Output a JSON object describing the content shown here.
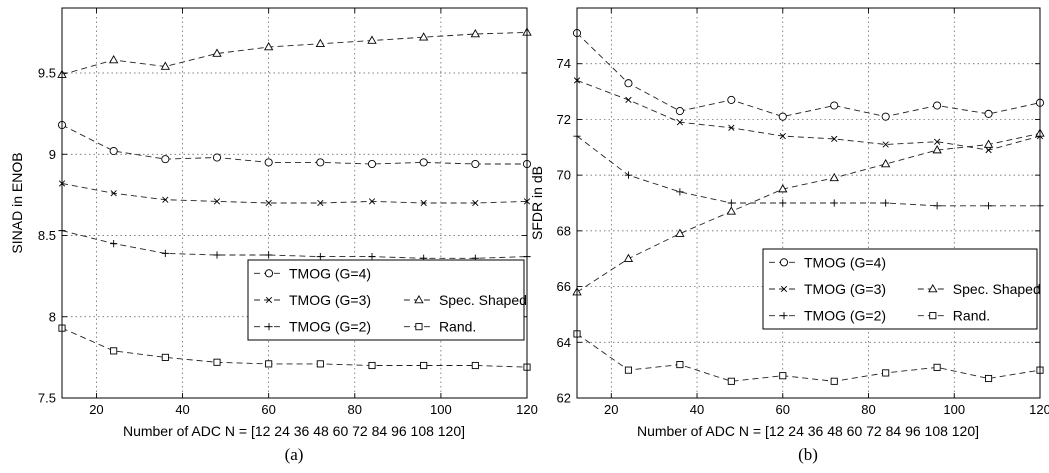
{
  "chart_data": [
    {
      "type": "line",
      "panel": "(a)",
      "xlabel": "Number of ADC N = [12 24 36 48 60 72 84 96 108 120]",
      "ylabel": "SINAD in ENOB",
      "xlim": [
        12,
        120
      ],
      "ylim": [
        7.5,
        9.9
      ],
      "xticks": [
        20,
        40,
        60,
        80,
        100,
        120
      ],
      "yticks": [
        7.5,
        8,
        8.5,
        9,
        9.5
      ],
      "ytick_labels": [
        "7.5",
        "8",
        "8.5",
        "9",
        "9.5"
      ],
      "grid": true,
      "legend_position": "lower-right",
      "x": [
        12,
        24,
        36,
        48,
        60,
        72,
        84,
        96,
        108,
        120
      ],
      "series": [
        {
          "name": "TMOG (G=4)",
          "marker": "circle",
          "values": [
            9.18,
            9.02,
            8.97,
            8.98,
            8.95,
            8.95,
            8.94,
            8.95,
            8.94,
            8.94
          ]
        },
        {
          "name": "TMOG (G=3)",
          "marker": "x",
          "values": [
            8.82,
            8.76,
            8.72,
            8.71,
            8.7,
            8.7,
            8.71,
            8.7,
            8.7,
            8.71
          ]
        },
        {
          "name": "TMOG (G=2)",
          "marker": "plus",
          "values": [
            8.53,
            8.45,
            8.39,
            8.38,
            8.38,
            8.37,
            8.37,
            8.36,
            8.36,
            8.37
          ]
        },
        {
          "name": "Spec. Shaped",
          "marker": "triangle",
          "values": [
            9.49,
            9.58,
            9.54,
            9.62,
            9.66,
            9.68,
            9.7,
            9.72,
            9.74,
            9.75
          ]
        },
        {
          "name": "Rand.",
          "marker": "square",
          "values": [
            7.93,
            7.79,
            7.75,
            7.72,
            7.71,
            7.71,
            7.7,
            7.7,
            7.7,
            7.69
          ]
        }
      ]
    },
    {
      "type": "line",
      "panel": "(b)",
      "xlabel": "Number of ADC N = [12 24 36 48 60 72 84 96 108 120]",
      "ylabel": "SFDR in dB",
      "xlim": [
        12,
        120
      ],
      "ylim": [
        62,
        76
      ],
      "xticks": [
        20,
        40,
        60,
        80,
        100,
        120
      ],
      "yticks": [
        62,
        64,
        66,
        68,
        70,
        72,
        74
      ],
      "ytick_labels": [
        "62",
        "64",
        "66",
        "68",
        "70",
        "72",
        "74"
      ],
      "grid": true,
      "legend_position": "lower-right",
      "x": [
        12,
        24,
        36,
        48,
        60,
        72,
        84,
        96,
        108,
        120
      ],
      "series": [
        {
          "name": "TMOG (G=4)",
          "marker": "circle",
          "values": [
            75.1,
            73.3,
            72.3,
            72.7,
            72.1,
            72.5,
            72.1,
            72.5,
            72.2,
            72.6
          ]
        },
        {
          "name": "TMOG (G=3)",
          "marker": "x",
          "values": [
            73.4,
            72.7,
            71.9,
            71.7,
            71.4,
            71.3,
            71.1,
            71.2,
            70.9,
            71.4
          ]
        },
        {
          "name": "TMOG (G=2)",
          "marker": "plus",
          "values": [
            71.4,
            70.0,
            69.4,
            69.0,
            69.0,
            69.0,
            69.0,
            68.9,
            68.9,
            68.9
          ]
        },
        {
          "name": "Spec. Shaped",
          "marker": "triangle",
          "values": [
            65.8,
            67.0,
            67.9,
            68.7,
            69.5,
            69.9,
            70.4,
            70.9,
            71.1,
            71.5
          ]
        },
        {
          "name": "Rand.",
          "marker": "square",
          "values": [
            64.3,
            63.0,
            63.2,
            62.6,
            62.8,
            62.6,
            62.9,
            63.1,
            62.7,
            63.0
          ]
        }
      ]
    }
  ]
}
